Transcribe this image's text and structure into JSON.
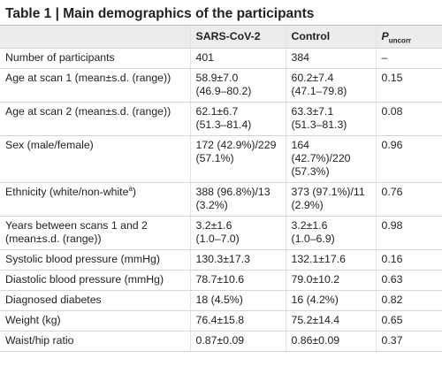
{
  "title": "Table 1 | Main demographics of the participants",
  "header": {
    "col1": "SARS-CoV-2",
    "col2": "Control",
    "p": "P",
    "p_sub": "uncorr"
  },
  "rows": [
    {
      "label": [
        "Number of participants"
      ],
      "cells": [
        [
          "401"
        ],
        [
          "384"
        ],
        [
          "–"
        ]
      ]
    },
    {
      "label": [
        "Age at scan 1 (mean±s.d. (range))"
      ],
      "cells": [
        [
          "58.9±7.0",
          "(46.9–80.2)"
        ],
        [
          "60.2±7.4",
          "(47.1–79.8)"
        ],
        [
          "0.15"
        ]
      ]
    },
    {
      "label": [
        "Age at scan 2 (mean±s.d. (range))"
      ],
      "cells": [
        [
          "62.1±6.7",
          "(51.3–81.4)"
        ],
        [
          "63.3±7.1",
          "(51.3–81.3)"
        ],
        [
          "0.08"
        ]
      ]
    },
    {
      "label": [
        "Sex (male/female)"
      ],
      "cells": [
        [
          "172 (42.9%)/229",
          "(57.1%)"
        ],
        [
          "164",
          "(42.7%)/220",
          "(57.3%)"
        ],
        [
          "0.96"
        ]
      ]
    },
    {
      "label": [
        "Ethnicity (white/non-white"
      ],
      "label_sup": "a",
      "label_end": ")",
      "cells": [
        [
          "388 (96.8%)/13",
          "(3.2%)"
        ],
        [
          "373 (97.1%)/11",
          "(2.9%)"
        ],
        [
          "0.76"
        ]
      ]
    },
    {
      "label": [
        "Years between scans 1 and 2",
        "(mean±s.d. (range))"
      ],
      "cells": [
        [
          "3.2±1.6",
          "(1.0–7.0)"
        ],
        [
          "3.2±1.6",
          "(1.0–6.9)"
        ],
        [
          "0.98"
        ]
      ]
    },
    {
      "label": [
        "Systolic blood pressure (mmHg)"
      ],
      "cells": [
        [
          "130.3±17.3"
        ],
        [
          "132.1±17.6"
        ],
        [
          "0.16"
        ]
      ]
    },
    {
      "label": [
        "Diastolic blood pressure (mmHg)"
      ],
      "cells": [
        [
          "78.7±10.6"
        ],
        [
          "79.0±10.2"
        ],
        [
          "0.63"
        ]
      ]
    },
    {
      "label": [
        "Diagnosed diabetes"
      ],
      "cells": [
        [
          "18 (4.5%)"
        ],
        [
          "16 (4.2%)"
        ],
        [
          "0.82"
        ]
      ]
    },
    {
      "label": [
        "Weight (kg)"
      ],
      "cells": [
        [
          "76.4±15.8"
        ],
        [
          "75.2±14.4"
        ],
        [
          "0.65"
        ]
      ]
    },
    {
      "label": [
        "Waist/hip ratio"
      ],
      "cells": [
        [
          "0.87±0.09"
        ],
        [
          "0.86±0.09"
        ],
        [
          "0.37"
        ]
      ]
    }
  ]
}
